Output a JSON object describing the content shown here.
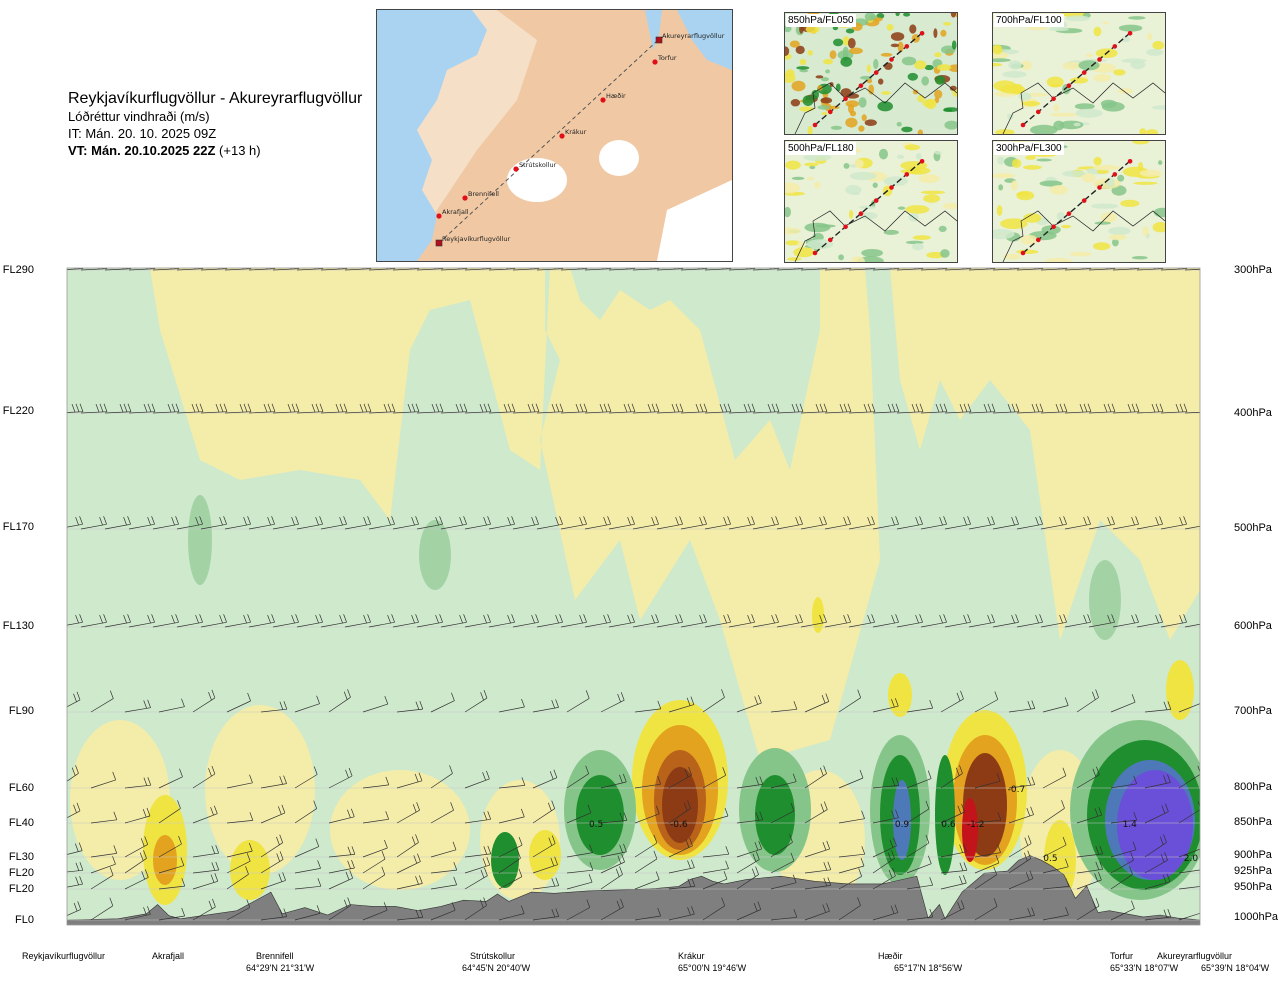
{
  "header": {
    "route": "Reykjavíkurflugvöllur - Akureyrarflugvöllur",
    "subtitle": "Lóðréttur vindhraði (m/s)",
    "issue": "IT: Mán. 20. 10. 2025 09Z",
    "valid_bold": "VT: Mán. 20.10.2025 22Z",
    "valid_offset": "(+13 h)"
  },
  "route_map": {
    "points": [
      {
        "name": "Akureyrarflugvöllur"
      },
      {
        "name": "Torfur"
      },
      {
        "name": "Hæðir"
      },
      {
        "name": "Krákur"
      },
      {
        "name": "Strútskollur"
      },
      {
        "name": "Brennifell"
      },
      {
        "name": "Akrafjall"
      },
      {
        "name": "Reykjavíkurflugvöllur"
      }
    ]
  },
  "small_maps": [
    {
      "label": "850hPa/FL050"
    },
    {
      "label": "700hPa/FL100"
    },
    {
      "label": "500hPa/FL180"
    },
    {
      "label": "300hPa/FL300"
    }
  ],
  "colors": {
    "land": "#f0c9a4",
    "land_high": "#ffffff",
    "sea": "#a9d3f0",
    "terrain": "#7f7f7f",
    "up_weak": "#f4eca9",
    "up_mod": "#f0e442",
    "up_strong": "#e3a31f",
    "up_vstrong": "#8c3b14",
    "down_weak": "#cfe9cc",
    "down_mod": "#86c58a",
    "down_strong": "#1f8e2e",
    "down_vstrong": "#4e79b9",
    "down_extreme": "#6a4fd8"
  },
  "chart_data": {
    "type": "heatmap",
    "title": "Lóðréttur vindhraði (m/s)",
    "left_axis_labels": [
      "FL290",
      "FL220",
      "FL170",
      "FL130",
      "FL90",
      "FL60",
      "FL40",
      "FL30",
      "FL20",
      "FL20",
      "FL0"
    ],
    "right_axis_labels": [
      "300hPa",
      "400hPa",
      "500hPa",
      "600hPa",
      "700hPa",
      "800hPa",
      "850hPa",
      "900hPa",
      "925hPa",
      "950hPa",
      "1000hPa"
    ],
    "pressure_levels": [
      300,
      400,
      500,
      600,
      700,
      800,
      850,
      900,
      925,
      950,
      1000
    ],
    "waypoints": [
      {
        "name": "Reykjavíkurflugvöllur",
        "coord": "",
        "dist": 0
      },
      {
        "name": "Akrafjall",
        "coord": "",
        "dist": 0.08
      },
      {
        "name": "Brennifell",
        "coord": "64°29'N 21°31'W",
        "dist": 0.19
      },
      {
        "name": "Strútskollur",
        "coord": "64°45'N 20°40'W",
        "dist": 0.38
      },
      {
        "name": "Krákur",
        "coord": "65°00'N 19°46'W",
        "dist": 0.57
      },
      {
        "name": "Hæðir",
        "coord": "65°17'N 18°56'W",
        "dist": 0.76
      },
      {
        "name": "Torfur",
        "coord": "65°33'N 18°07'W",
        "dist": 0.94
      },
      {
        "name": "Akureyrarflugvöllur",
        "coord": "65°39'N 18°04'W",
        "dist": 1.0
      }
    ],
    "contour_labels": [
      {
        "text": "0.5",
        "dist": 0.467,
        "p": 850
      },
      {
        "text": "-0.6",
        "dist": 0.54,
        "p": 850
      },
      {
        "text": "0.9",
        "dist": 0.737,
        "p": 850
      },
      {
        "text": "0.6",
        "dist": 0.778,
        "p": 850
      },
      {
        "text": "-1.2",
        "dist": 0.802,
        "p": 850
      },
      {
        "text": "-0.7",
        "dist": 0.838,
        "p": 800
      },
      {
        "text": "0.5",
        "dist": 0.868,
        "p": 900
      },
      {
        "text": "1.4",
        "dist": 0.938,
        "p": 850
      },
      {
        "text": "2.0",
        "dist": 0.992,
        "p": 900
      }
    ],
    "terrain": {
      "dist": [
        0,
        0.045,
        0.07,
        0.08,
        0.09,
        0.1,
        0.15,
        0.18,
        0.19,
        0.21,
        0.23,
        0.25,
        0.27,
        0.29,
        0.31,
        0.33,
        0.35,
        0.37,
        0.38,
        0.39,
        0.41,
        0.43,
        0.46,
        0.48,
        0.5,
        0.52,
        0.54,
        0.55,
        0.56,
        0.57,
        0.58,
        0.6,
        0.63,
        0.66,
        0.69,
        0.72,
        0.75,
        0.76,
        0.77,
        0.775,
        0.79,
        0.8,
        0.81,
        0.83,
        0.84,
        0.85,
        0.86,
        0.87,
        0.88,
        0.89,
        0.9,
        0.91,
        0.92,
        0.935,
        0.95,
        0.965,
        0.98,
        0.995,
        1.0
      ],
      "p_hpa": [
        1000,
        998,
        990,
        975,
        993,
        998,
        985,
        955,
        990,
        980,
        992,
        975,
        978,
        978,
        985,
        978,
        968,
        970,
        958,
        970,
        955,
        957,
        953,
        952,
        951,
        949,
        946,
        935,
        930,
        938,
        942,
        935,
        930,
        938,
        942,
        942,
        930,
        997,
        975,
        998,
        955,
        940,
        925,
        922,
        905,
        898,
        905,
        915,
        928,
        965,
        945,
        988,
        985,
        990,
        995,
        992,
        997,
        999,
        1000
      ]
    }
  }
}
